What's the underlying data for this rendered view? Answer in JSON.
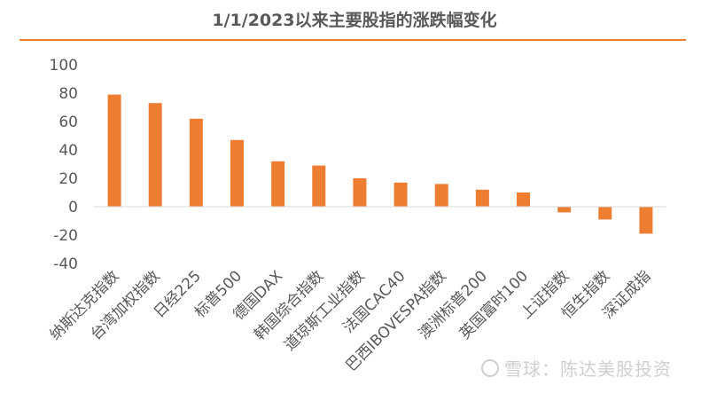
{
  "chart_data": {
    "type": "bar",
    "title": "1/1/2023以来主要股指的涨跌幅变化",
    "xlabel": "",
    "ylabel": "",
    "categories": [
      "纳斯达克指数",
      "台湾加权指数",
      "日经225",
      "标普500",
      "德国DAX",
      "韩国综合指数",
      "道琼斯工业指数",
      "法国CAC40",
      "巴西IBOVESPA指数",
      "澳洲标普200",
      "英国富时100",
      "上证指数",
      "恒生指数",
      "深证成指"
    ],
    "values": [
      79,
      73,
      62,
      47,
      32,
      29,
      20,
      17,
      16,
      12,
      10,
      -4,
      -9,
      -19
    ],
    "ylim": [
      -40,
      100
    ],
    "yticks": [
      100,
      80,
      60,
      40,
      20,
      0,
      -20,
      -40
    ],
    "grid": false,
    "legend": "none",
    "bar_color": "#ED7D31"
  },
  "watermark": {
    "text": "雪球：陈达美股投资"
  }
}
